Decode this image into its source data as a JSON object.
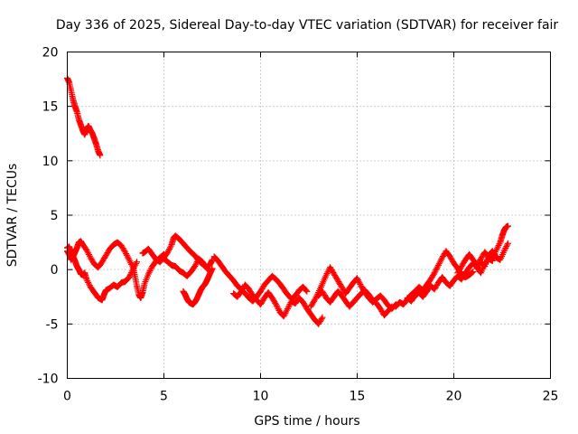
{
  "chart_data": {
    "type": "scatter",
    "title": "Day 336 of 2025, Sidereal Day-to-day VTEC variation (SDTVAR) for receiver fair",
    "xlabel": "GPS time / hours",
    "ylabel": "SDTVAR / TECUs",
    "xlim": [
      0,
      25
    ],
    "ylim": [
      -10,
      20
    ],
    "xticks": [
      0,
      5,
      10,
      15,
      20,
      25
    ],
    "yticks": [
      -10,
      -5,
      0,
      5,
      10,
      15,
      20
    ],
    "grid": true,
    "marker": "+",
    "color": "#ff0000",
    "series": [
      {
        "name": "SDTVAR",
        "segments": [
          {
            "x": [
              0.0,
              0.1,
              0.2,
              0.3,
              0.4,
              0.5,
              0.6,
              0.7,
              0.8,
              0.9,
              1.0,
              1.1,
              1.2,
              1.3,
              1.4,
              1.5,
              1.6,
              1.7
            ],
            "y": [
              17.6,
              17.2,
              16.4,
              15.6,
              15.0,
              14.5,
              13.8,
              13.3,
              12.8,
              12.4,
              12.9,
              13.2,
              12.8,
              12.5,
              12.0,
              11.5,
              10.9,
              10.5
            ]
          },
          {
            "x": [
              0.0,
              0.1,
              0.2,
              0.3,
              0.4,
              0.5,
              0.6,
              0.7,
              0.8,
              0.9,
              1.0,
              1.2,
              1.4,
              1.6,
              1.8,
              1.9,
              2.0,
              2.2,
              2.4,
              2.6,
              2.8,
              3.0,
              3.2,
              3.4,
              3.6
            ],
            "y": [
              2.0,
              2.1,
              1.6,
              1.2,
              0.8,
              0.3,
              0.0,
              -0.4,
              -0.5,
              -0.3,
              -0.9,
              -1.6,
              -2.1,
              -2.6,
              -2.8,
              -2.3,
              -1.9,
              -1.7,
              -1.4,
              -1.6,
              -1.2,
              -1.1,
              -0.7,
              0.0,
              0.7
            ]
          },
          {
            "x": [
              0.0,
              0.1,
              0.2,
              0.3,
              0.4,
              0.5,
              0.6,
              0.7,
              0.8,
              1.0,
              1.2,
              1.4,
              1.6,
              1.8,
              2.0,
              2.2,
              2.4,
              2.6,
              2.8,
              3.0,
              3.2,
              3.4,
              3.5,
              3.6,
              3.7,
              3.8,
              3.9,
              4.0,
              4.2,
              4.4,
              4.6,
              4.8,
              5.0
            ],
            "y": [
              1.7,
              1.4,
              0.9,
              1.2,
              1.6,
              2.0,
              2.5,
              2.6,
              2.3,
              1.8,
              1.1,
              0.5,
              0.2,
              0.7,
              1.3,
              1.9,
              2.3,
              2.5,
              2.2,
              1.6,
              0.9,
              0.2,
              -0.6,
              -1.5,
              -2.3,
              -2.6,
              -2.1,
              -1.3,
              -0.4,
              0.3,
              0.8,
              1.1,
              1.4
            ]
          },
          {
            "x": [
              3.9,
              4.0,
              4.2,
              4.4,
              4.6,
              4.8,
              5.0,
              5.2,
              5.4,
              5.5,
              5.6,
              5.8,
              6.0,
              6.2,
              6.4,
              6.6,
              6.8,
              7.0,
              7.2,
              7.4,
              7.5
            ],
            "y": [
              1.5,
              1.6,
              1.9,
              1.4,
              0.9,
              0.7,
              1.1,
              1.6,
              2.3,
              2.9,
              3.1,
              2.8,
              2.4,
              2.0,
              1.6,
              1.3,
              0.8,
              0.5,
              0.2,
              0.5,
              0.9
            ]
          },
          {
            "x": [
              5.0,
              5.2,
              5.4,
              5.6,
              5.8,
              6.0,
              6.2,
              6.4,
              6.6,
              6.8,
              7.0,
              7.2,
              7.4
            ],
            "y": [
              1.0,
              0.7,
              0.4,
              0.3,
              -0.1,
              -0.3,
              -0.6,
              -0.2,
              0.3,
              1.0,
              0.7,
              0.2,
              -0.2
            ]
          },
          {
            "x": [
              6.0,
              6.1,
              6.2,
              6.3,
              6.4,
              6.5,
              6.6,
              6.7,
              6.8,
              6.9,
              7.0,
              7.1,
              7.2,
              7.3,
              7.4,
              7.5
            ],
            "y": [
              -2.0,
              -2.3,
              -2.7,
              -3.0,
              -3.1,
              -3.2,
              -3.0,
              -2.7,
              -2.3,
              -1.9,
              -1.6,
              -1.4,
              -1.1,
              -0.7,
              -0.3,
              0.1
            ]
          },
          {
            "x": [
              7.6,
              7.8,
              8.0,
              8.2,
              8.4,
              8.6,
              8.8,
              9.0,
              9.2,
              9.4,
              9.6,
              9.8,
              10.0,
              10.2,
              10.4,
              10.6,
              10.8,
              11.0,
              11.2,
              11.4,
              11.6,
              11.8,
              12.0,
              12.2,
              12.4
            ],
            "y": [
              1.2,
              0.8,
              0.3,
              -0.2,
              -0.6,
              -1.0,
              -1.5,
              -1.8,
              -2.2,
              -2.6,
              -2.9,
              -2.5,
              -2.0,
              -1.4,
              -1.0,
              -0.6,
              -0.9,
              -1.3,
              -1.8,
              -2.3,
              -2.7,
              -2.4,
              -1.9,
              -1.6,
              -2.0
            ]
          },
          {
            "x": [
              8.6,
              8.8,
              9.0,
              9.2,
              9.4,
              9.6,
              9.8,
              10.0,
              10.2,
              10.4,
              10.6,
              10.8,
              11.0,
              11.2,
              11.4,
              11.6,
              11.8,
              12.0,
              12.2,
              12.4,
              12.6,
              12.8,
              13.0,
              13.2
            ],
            "y": [
              -2.2,
              -2.5,
              -2.0,
              -1.4,
              -1.8,
              -2.4,
              -2.8,
              -3.2,
              -2.6,
              -2.1,
              -2.6,
              -3.2,
              -3.9,
              -4.3,
              -3.6,
              -2.9,
              -3.1,
              -2.6,
              -3.0,
              -3.6,
              -4.1,
              -4.6,
              -5.0,
              -4.4
            ]
          },
          {
            "x": [
              12.6,
              12.8,
              13.0,
              13.2,
              13.4,
              13.6,
              13.8,
              14.0,
              14.2,
              14.4,
              14.6,
              14.8,
              15.0,
              15.2,
              15.4,
              15.6,
              15.8,
              16.0,
              16.2,
              16.4,
              16.6,
              16.8,
              17.0
            ],
            "y": [
              -3.4,
              -2.8,
              -2.1,
              -1.3,
              -0.5,
              0.2,
              -0.4,
              -1.0,
              -1.6,
              -2.2,
              -1.7,
              -1.2,
              -0.8,
              -1.5,
              -2.1,
              -2.6,
              -3.0,
              -2.7,
              -2.4,
              -2.8,
              -3.3,
              -3.6,
              -3.2
            ]
          },
          {
            "x": [
              13.0,
              13.2,
              13.4,
              13.6,
              13.8,
              14.0,
              14.2,
              14.4,
              14.6,
              14.8,
              15.0,
              15.2,
              15.4,
              15.6,
              15.8,
              16.0,
              16.2,
              16.4,
              16.6,
              16.8
            ],
            "y": [
              -2.4,
              -2.0,
              -2.6,
              -3.0,
              -2.5,
              -2.0,
              -2.4,
              -2.9,
              -3.4,
              -3.0,
              -2.6,
              -2.2,
              -1.9,
              -2.3,
              -2.8,
              -3.1,
              -3.6,
              -4.2,
              -3.8,
              -3.4
            ]
          },
          {
            "x": [
              17.0,
              17.2,
              17.4,
              17.6,
              17.8,
              18.0,
              18.2,
              18.4,
              18.6,
              18.8,
              19.0,
              19.2,
              19.4,
              19.6,
              19.8,
              20.0,
              20.2,
              20.4,
              20.6,
              20.8,
              21.0
            ],
            "y": [
              -3.4,
              -3.0,
              -3.2,
              -2.7,
              -2.3,
              -2.0,
              -1.6,
              -1.9,
              -1.4,
              -0.9,
              -0.3,
              0.4,
              1.1,
              1.7,
              1.2,
              0.6,
              0.1,
              -0.4,
              -0.7,
              -0.5,
              -0.2
            ]
          },
          {
            "x": [
              17.6,
              17.8,
              18.0,
              18.2,
              18.4,
              18.6,
              18.8,
              19.0,
              19.2,
              19.4,
              19.6,
              19.8,
              20.0,
              20.2,
              20.4,
              20.6,
              20.8,
              21.0,
              21.2,
              21.4,
              21.6,
              21.8,
              22.0
            ],
            "y": [
              -2.6,
              -2.9,
              -2.4,
              -2.1,
              -2.5,
              -2.0,
              -1.5,
              -1.8,
              -1.2,
              -0.7,
              -1.2,
              -1.5,
              -1.0,
              -0.6,
              -0.9,
              -0.3,
              0.2,
              0.6,
              0.2,
              -0.3,
              0.5,
              1.0,
              0.8
            ]
          },
          {
            "x": [
              20.2,
              20.4,
              20.6,
              20.8,
              21.0,
              21.2,
              21.4,
              21.6,
              21.8,
              22.0,
              22.2,
              22.4,
              22.5,
              22.6,
              22.7,
              22.8
            ],
            "y": [
              -0.3,
              0.3,
              0.9,
              1.4,
              0.9,
              0.4,
              1.0,
              1.6,
              1.2,
              0.9,
              1.8,
              2.5,
              3.1,
              3.6,
              3.9,
              4.0
            ]
          },
          {
            "x": [
              21.2,
              21.4,
              21.6,
              21.8,
              22.0,
              22.2,
              22.4,
              22.6,
              22.8
            ],
            "y": [
              0.1,
              0.7,
              0.3,
              1.3,
              1.7,
              1.1,
              0.9,
              1.7,
              2.4
            ]
          }
        ]
      }
    ]
  }
}
